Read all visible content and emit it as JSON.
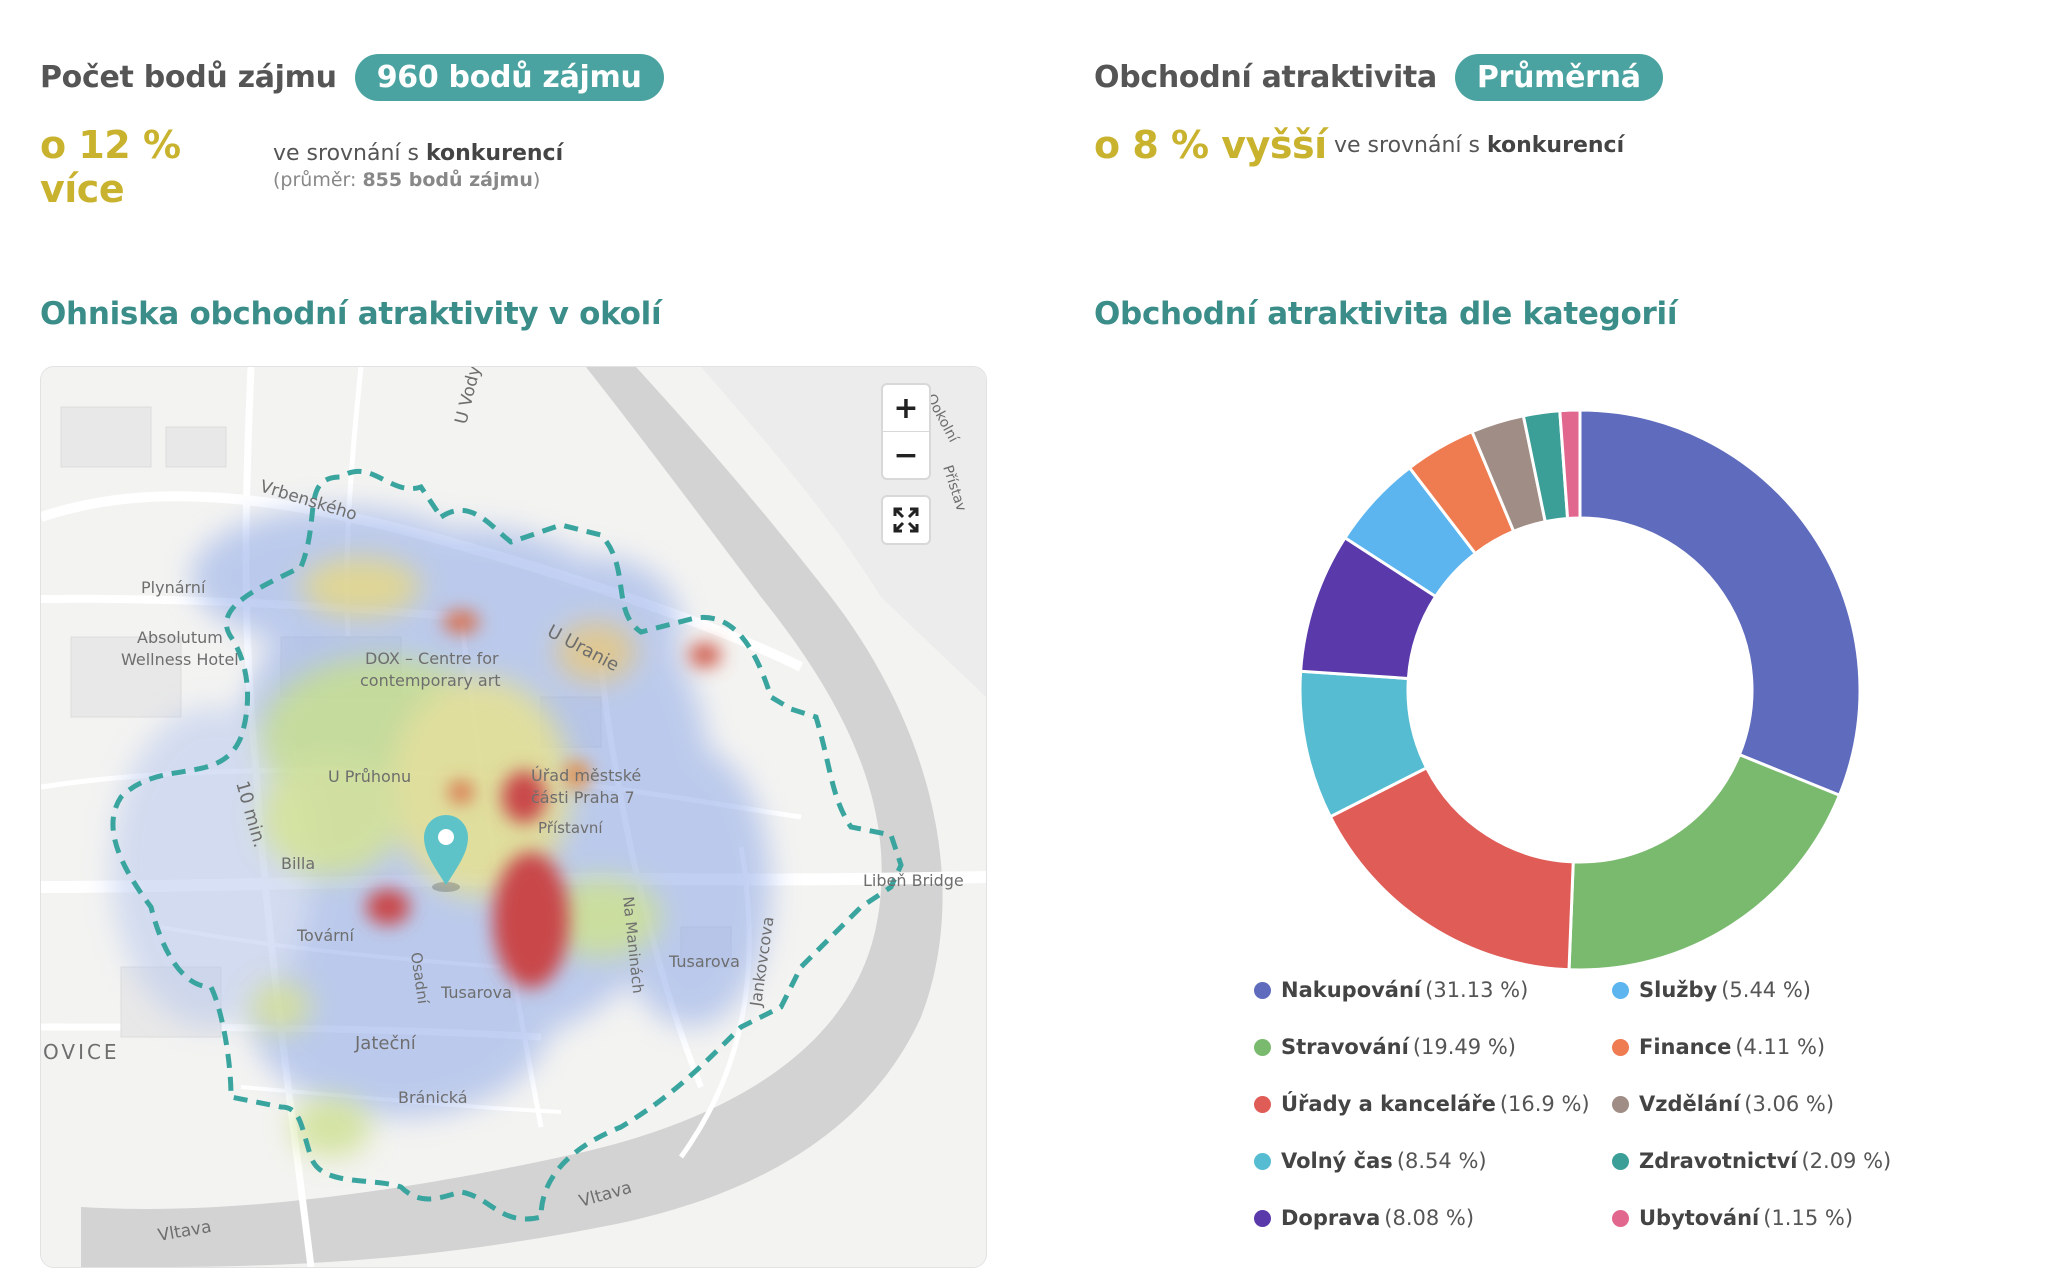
{
  "metrics": {
    "poi": {
      "label": "Počet bodů zájmu",
      "badge": "960 bodů zájmu",
      "diff": "o 12 % více",
      "compare_prefix": "ve srovnání s ",
      "compare_bold": "konkurencí",
      "avg_prefix": "(průměr: ",
      "avg_value": "855 bodů zájmu",
      "avg_suffix": ")"
    },
    "attractiveness": {
      "label": "Obchodní atraktivita",
      "badge": "Průměrná",
      "diff": "o 8 % vyšší",
      "compare_prefix": "ve srovnání s ",
      "compare_bold": "konkurencí"
    }
  },
  "map_section": {
    "title": "Ohniska obchodní atraktivity v okolí",
    "zoom_in": "+",
    "zoom_out": "−",
    "fullscreen_icon": "expand-arrows-icon",
    "labels": {
      "u_vody": "U Vody",
      "vrbenskeho": "Vrbenského",
      "plynarni": "Plynární",
      "absolutum": "Absolutum",
      "wellness": "Wellness Hotel",
      "dox1": "DOX – Centre for",
      "dox2": "contemporary art",
      "u_uranie": "U Uranie",
      "u_pruhonu": "U Průhonu",
      "urad1": "Úřad městské",
      "urad2": "části Praha 7",
      "pristavni": "Přístavní",
      "ten_min": "10 min.",
      "billa": "Billa",
      "libe_bridge": "Libeň Bridge",
      "tovarni": "Tovární",
      "osadni": "Osadní",
      "na_manine": "Na Maninách",
      "tusarova_left": "Tusarova",
      "tusarova_right": "Tusarova",
      "jankovcova": "Jankovcova",
      "ovice": "OVICE",
      "jatecni": "Jateční",
      "branicka": "Bránická",
      "vltava_1": "Vltava",
      "vltava_2": "Vltava",
      "okolni": "Ookolní",
      "pristav_r": "Přístav"
    }
  },
  "chart_section": {
    "title": "Obchodní atraktivita dle kategorií"
  },
  "chart_data": {
    "type": "pie",
    "donut": true,
    "series": [
      {
        "name": "Nakupování",
        "label": "(31.13 %)",
        "value": 31.13,
        "color": "#5f6bbd"
      },
      {
        "name": "Stravování",
        "label": "(19.49 %)",
        "value": 19.49,
        "color": "#7aba6e"
      },
      {
        "name": "Úřady a kanceláře",
        "label": "(16.9 %)",
        "value": 16.9,
        "color": "#e05c57"
      },
      {
        "name": "Volný čas",
        "label": "(8.54 %)",
        "value": 8.54,
        "color": "#55bcd2"
      },
      {
        "name": "Doprava",
        "label": "(8.08 %)",
        "value": 8.08,
        "color": "#5a3aaa"
      },
      {
        "name": "Služby",
        "label": "(5.44 %)",
        "value": 5.44,
        "color": "#5db5ef"
      },
      {
        "name": "Finance",
        "label": "(4.11 %)",
        "value": 4.11,
        "color": "#ef7b50"
      },
      {
        "name": "Vzdělání",
        "label": "(3.06 %)",
        "value": 3.06,
        "color": "#a08d85"
      },
      {
        "name": "Zdravotnictví",
        "label": "(2.09 %)",
        "value": 2.09,
        "color": "#3b9e97"
      },
      {
        "name": "Ubytování",
        "label": "(1.15 %)",
        "value": 1.15,
        "color": "#e2678f"
      }
    ],
    "legend_position": "bottom"
  }
}
